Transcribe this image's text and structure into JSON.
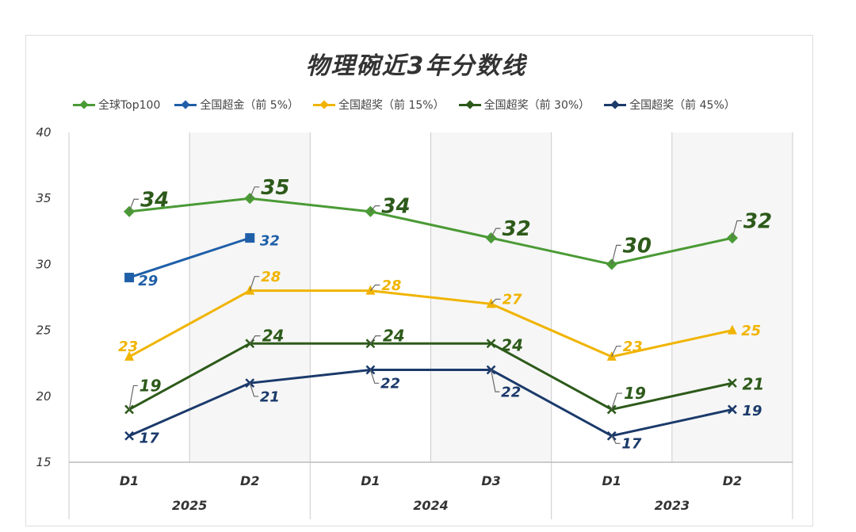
{
  "chart_data": {
    "type": "line",
    "title": "物理碗近3年分数线",
    "categories": [
      "D1",
      "D2",
      "D1",
      "D3",
      "D1",
      "D2"
    ],
    "groups": [
      {
        "label": "2025",
        "span": 2
      },
      {
        "label": "2024",
        "span": 2
      },
      {
        "label": "2023",
        "span": 2
      }
    ],
    "ylim": [
      15,
      40
    ],
    "yticks": [
      15,
      20,
      25,
      30,
      35,
      40
    ],
    "grid": true,
    "legend": "top",
    "series": [
      {
        "name": "全球Top100",
        "color": "#4a9a35",
        "marker": "diamond",
        "values": [
          34,
          35,
          34,
          32,
          30,
          32
        ]
      },
      {
        "name": "全国超金（前 5%）",
        "color": "#1f5fa8",
        "marker": "square",
        "values": [
          29,
          32,
          null,
          null,
          null,
          null
        ]
      },
      {
        "name": "全国超奖（前 15%）",
        "color": "#f0b400",
        "marker": "triangle",
        "values": [
          23,
          28,
          28,
          27,
          23,
          25
        ]
      },
      {
        "name": "全国超奖（前 30%）",
        "color": "#2d5a1a",
        "marker": "x",
        "values": [
          19,
          24,
          24,
          24,
          19,
          21
        ]
      },
      {
        "name": "全国超奖（前 45%）",
        "color": "#1b3a6b",
        "marker": "x",
        "values": [
          17,
          21,
          22,
          22,
          17,
          19
        ]
      }
    ]
  }
}
